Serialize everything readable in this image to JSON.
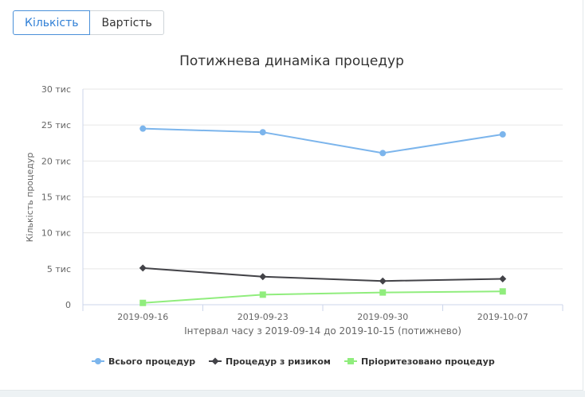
{
  "tabs": [
    {
      "label": "Кількість",
      "active": true
    },
    {
      "label": "Вартість",
      "active": false
    }
  ],
  "chart_data": {
    "type": "line",
    "title": "Потижнева динаміка процедур",
    "xlabel": "Інтервал часу з 2019-09-14 до 2019-10-15 (потижнево)",
    "ylabel": "Кількість процедур",
    "categories": [
      "2019-09-16",
      "2019-09-23",
      "2019-09-30",
      "2019-10-07"
    ],
    "ylim": [
      0,
      30000
    ],
    "y_ticks": [
      {
        "value": 0,
        "label": "0"
      },
      {
        "value": 5000,
        "label": "5 тис"
      },
      {
        "value": 10000,
        "label": "10 тис"
      },
      {
        "value": 15000,
        "label": "15 тис"
      },
      {
        "value": 20000,
        "label": "20 тис"
      },
      {
        "value": 25000,
        "label": "25 тис"
      },
      {
        "value": 30000,
        "label": "30 тис"
      }
    ],
    "grid": true,
    "legend_position": "bottom",
    "series": [
      {
        "name": "Всього процедур",
        "values": [
          24500,
          24000,
          21100,
          23700
        ],
        "color": "#7cb5ec",
        "marker": "circle"
      },
      {
        "name": "Процедур з ризиком",
        "values": [
          5100,
          3900,
          3300,
          3600
        ],
        "color": "#434348",
        "marker": "diamond"
      },
      {
        "name": "Пріоритезовано процедур",
        "values": [
          250,
          1400,
          1700,
          1850
        ],
        "color": "#90ed7d",
        "marker": "square"
      }
    ]
  }
}
